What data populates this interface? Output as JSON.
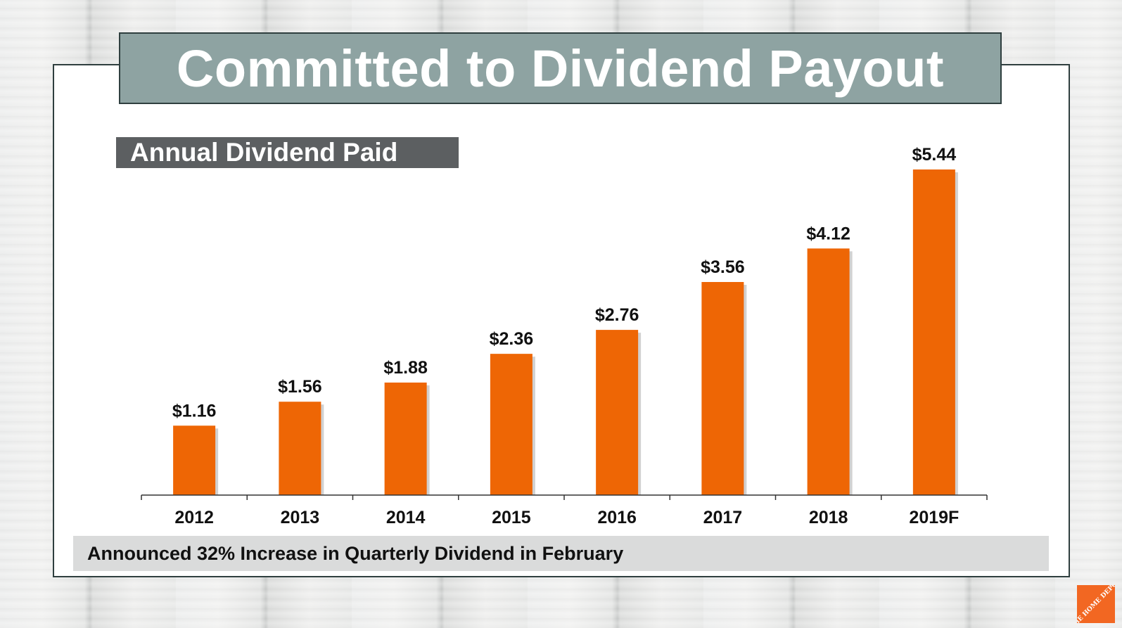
{
  "slide": {
    "title": "Committed to Dividend Payout",
    "subtitle": "Annual Dividend Paid",
    "footer_note": "Announced 32% Increase in Quarterly Dividend in February",
    "logo_text": "THE HOME DEPOT"
  },
  "colors": {
    "bar": "#ee6605",
    "title_box": "#8ea3a2",
    "subtitle_box": "#5c5f61",
    "footer_bar": "#dadbdb",
    "logo": "#f26722"
  },
  "chart_data": {
    "type": "bar",
    "title": "Annual Dividend Paid",
    "categories": [
      "2012",
      "2013",
      "2014",
      "2015",
      "2016",
      "2017",
      "2018",
      "2019F"
    ],
    "values": [
      1.16,
      1.56,
      1.88,
      2.36,
      2.76,
      3.56,
      4.12,
      5.44
    ],
    "data_labels": [
      "$1.16",
      "$1.56",
      "$1.88",
      "$2.36",
      "$2.76",
      "$3.56",
      "$4.12",
      "$5.44"
    ],
    "xlabel": "",
    "ylabel": "",
    "ylim": [
      0,
      5.44
    ],
    "y_axis_visible": false,
    "grid": false,
    "legend": "none"
  }
}
